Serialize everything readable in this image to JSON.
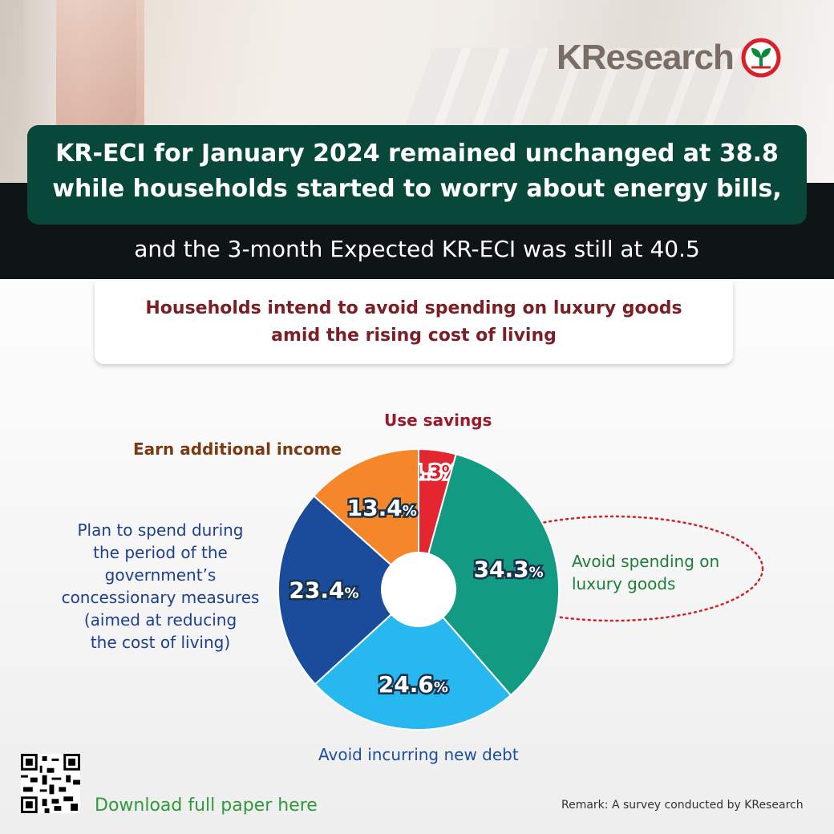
{
  "brand": {
    "name": "KResearch"
  },
  "header": {
    "line1": "KR-ECI for January 2024 remained unchanged at 38.8",
    "line2": "while households started to worry about energy bills,",
    "line3": "and the 3-month Expected KR-ECI was still at 40.5"
  },
  "subtitle": {
    "line1": "Households intend to avoid spending on luxury goods",
    "line2": "amid the rising cost of living"
  },
  "colors": {
    "header_green": "#07483b",
    "use_savings": "#e3262f",
    "avoid_luxury": "#139a82",
    "avoid_debt": "#26b8ee",
    "plan_spend": "#1b4c9c",
    "earn_income": "#f5862a"
  },
  "chart_data": {
    "type": "pie",
    "donut": true,
    "slices": [
      {
        "label": "Use savings",
        "value": 4.3,
        "display": "4.3%",
        "color": "#e3262f"
      },
      {
        "label": "Avoid spending on luxury goods",
        "value": 34.3,
        "display": "34.3%",
        "color": "#139a82"
      },
      {
        "label": "Avoid incurring new debt",
        "value": 24.6,
        "display": "24.6%",
        "color": "#26b8ee"
      },
      {
        "label": "Plan to spend during the period of the government’s concessionary measures (aimed at reducing the cost of living)",
        "value": 23.4,
        "display": "23.4%",
        "color": "#1b4c9c"
      },
      {
        "label": "Earn additional income",
        "value": 13.4,
        "display": "13.4%",
        "color": "#f5862a"
      }
    ]
  },
  "labels": {
    "use_savings": "Use savings",
    "earn_income": "Earn additional income",
    "plan_spend": [
      "Plan to spend during",
      "the period of the",
      "government’s",
      "concessionary measures",
      "(aimed at reducing",
      "the cost of living)"
    ],
    "avoid_luxury": [
      "Avoid spending on",
      "luxury goods"
    ],
    "avoid_debt": "Avoid incurring new debt"
  },
  "footer": {
    "download": "Download full paper here",
    "remark": "Remark: A survey conducted by KResearch"
  }
}
